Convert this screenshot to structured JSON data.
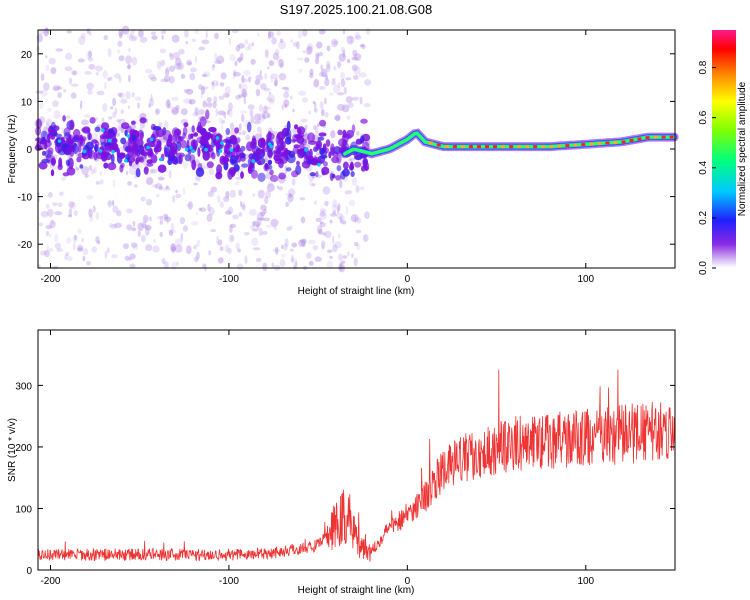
{
  "title": "S197.2025.100.21.08.G08",
  "chart_data": [
    {
      "type": "heatmap",
      "xlabel": "Height of straight line (km)",
      "ylabel": "Frequency (Hz)",
      "xlim": [
        -207,
        150
      ],
      "ylim": [
        -25,
        25
      ],
      "xticks": [
        -200,
        -100,
        0,
        100
      ],
      "yticks": [
        -20,
        -10,
        0,
        10,
        20
      ],
      "colorbar": {
        "label": "Normalized spectral amplitude",
        "range": [
          0,
          0.95
        ],
        "ticks": [
          "0.0",
          "0.2",
          "0.4",
          "0.6",
          "0.8"
        ],
        "tick_values": [
          0,
          0.2,
          0.4,
          0.6,
          0.8
        ]
      },
      "ridge": {
        "x": [
          -207,
          -180,
          -150,
          -120,
          -90,
          -60,
          -40,
          -30,
          -20,
          -10,
          0,
          5,
          10,
          20,
          40,
          60,
          80,
          100,
          120,
          135,
          150
        ],
        "frequency": [
          0.5,
          1,
          0,
          1,
          -1,
          0,
          -2,
          0,
          -1,
          0,
          2,
          3.5,
          1.5,
          0.5,
          0.5,
          0.5,
          0.5,
          1,
          1.5,
          2.5,
          2.5
        ]
      }
    },
    {
      "type": "line",
      "xlabel": "Height of straight line (km)",
      "ylabel": "SNR (10 * v/v)",
      "xlim": [
        -207,
        150
      ],
      "ylim": [
        0,
        390
      ],
      "xticks": [
        -200,
        -100,
        0,
        100
      ],
      "yticks": [
        0,
        100,
        200,
        300
      ],
      "color": "#ee3333",
      "series": [
        {
          "x": [
            -207,
            -180,
            -150,
            -120,
            -90,
            -70,
            -50,
            -40,
            -35,
            -30,
            -25,
            -20,
            -10,
            0,
            10,
            20,
            30,
            40,
            60,
            80,
            100,
            120,
            140,
            150
          ],
          "values": [
            25,
            25,
            25,
            25,
            25,
            30,
            40,
            70,
            90,
            60,
            40,
            30,
            70,
            90,
            120,
            160,
            180,
            190,
            205,
            210,
            215,
            220,
            225,
            230
          ]
        }
      ]
    }
  ]
}
